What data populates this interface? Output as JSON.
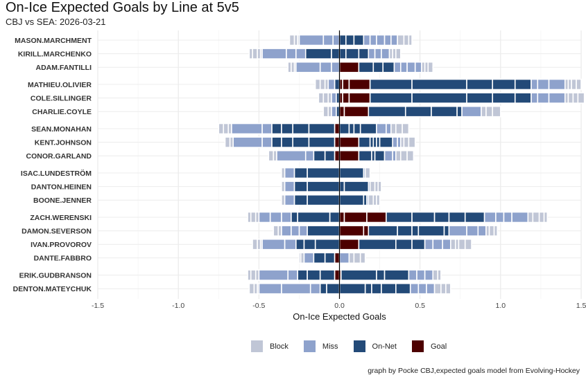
{
  "title": "On-Ice Expected Goals by Line at 5v5",
  "subtitle": "CBJ vs SEA: 2026-03-21",
  "caption": "graph by Pocke CBJ,expected goals model from Evolving-Hockey",
  "colors": {
    "Block": "#c0c6d6",
    "Miss": "#8ea2cc",
    "On-Net": "#234a78",
    "Goal": "#4d0000"
  },
  "chart_data": {
    "type": "bar",
    "orientation": "horizontal",
    "stacked": true,
    "diverging": true,
    "xlabel": "On-Ice Expected Goals",
    "xlim": [
      -1.5,
      1.5
    ],
    "xticks": [
      -1.5,
      -1.0,
      -0.5,
      0.0,
      0.5,
      1.0,
      1.5
    ],
    "xtick_labels": [
      "-1.5",
      "-1.0",
      "-0.5",
      "0.0",
      "0.5",
      "1.0",
      "1.5"
    ],
    "grid": true,
    "legend": {
      "position": "bottom",
      "entries": [
        "Block",
        "Miss",
        "On-Net",
        "Goal"
      ]
    },
    "groups": [
      [
        {
          "player": "MASON.MARCHMENT",
          "against": {
            "Block": [
              0.01,
              0.02,
              0.03
            ],
            "Miss": [
              0.04,
              0.06,
              0.15
            ],
            "On-Net": [],
            "Goal": []
          },
          "for": {
            "Block": [
              0.04,
              0.03,
              0.02
            ],
            "Miss": [
              0.04,
              0.04,
              0.05,
              0.04,
              0.04
            ],
            "On-Net": [
              0.04,
              0.05,
              0.06
            ],
            "Goal": []
          }
        },
        {
          "player": "KIRILL.MARCHENKO",
          "against": {
            "Block": [
              0.01,
              0.02,
              0.03,
              0.02
            ],
            "Miss": [
              0.06,
              0.06,
              0.15
            ],
            "On-Net": [
              0.05,
              0.16
            ],
            "Goal": []
          },
          "for": {
            "Block": [
              0.02,
              0.02,
              0.03
            ],
            "Miss": [
              0.04,
              0.04,
              0.05
            ],
            "On-Net": [
              0.04,
              0.08,
              0.06
            ],
            "Goal": []
          }
        },
        {
          "player": "ADAM.FANTILLI",
          "against": {
            "Block": [
              0.01,
              0.02,
              0.02
            ],
            "Miss": [
              0.05,
              0.07,
              0.15
            ],
            "On-Net": [],
            "Goal": []
          },
          "for": {
            "Block": [
              0.02,
              0.02,
              0.03
            ],
            "Miss": [
              0.04,
              0.04,
              0.05,
              0.04
            ],
            "On-Net": [
              0.09,
              0.06,
              0.07
            ],
            "Goal": [
              0.12
            ]
          }
        }
      ],
      [
        {
          "player": "MATHIEU.OLIVIER",
          "against": {
            "Block": [
              0.02,
              0.03,
              0.03
            ],
            "Miss": [
              0.04
            ],
            "On-Net": [
              0.03
            ],
            "Goal": []
          },
          "for": {
            "Block": [
              0.02,
              0.02,
              0.03,
              0.03
            ],
            "Miss": [
              0.04,
              0.07,
              0.1
            ],
            "On-Net": [
              0.26,
              0.34,
              0.16,
              0.14,
              0.1
            ],
            "Goal": [
              0.02,
              0.04,
              0.13
            ]
          }
        },
        {
          "player": "COLE.SILLINGER",
          "against": {
            "Block": [
              0.02,
              0.03,
              0.03
            ],
            "Miss": [
              0.03
            ],
            "On-Net": [
              0.02
            ],
            "Goal": []
          },
          "for": {
            "Block": [
              0.02,
              0.03,
              0.03,
              0.04
            ],
            "Miss": [
              0.04,
              0.07,
              0.1
            ],
            "On-Net": [
              0.26,
              0.34,
              0.16,
              0.14,
              0.1
            ],
            "Goal": [
              0.02,
              0.04,
              0.13
            ]
          }
        },
        {
          "player": "CHARLIE.COYLE",
          "against": {
            "Block": [
              0.02,
              0.03
            ],
            "Miss": [
              0.03
            ],
            "On-Net": [
              0.02
            ],
            "Goal": []
          },
          "for": {
            "Block": [
              0.03,
              0.04,
              0.05
            ],
            "Miss": [
              0.12
            ],
            "On-Net": [
              0.23,
              0.16,
              0.16,
              0.03
            ],
            "Goal": [
              0.03,
              0.15
            ]
          }
        }
      ],
      [
        {
          "player": "SEAN.MONAHAN",
          "against": {
            "Block": [
              0.02,
              0.03,
              0.03
            ],
            "Miss": [
              0.06,
              0.19
            ],
            "On-Net": [
              0.16,
              0.1,
              0.07,
              0.06
            ],
            "Goal": [
              0.03
            ]
          },
          "for": {
            "Block": [
              0.03,
              0.04,
              0.04
            ],
            "Miss": [
              0.06,
              0.03
            ],
            "On-Net": [
              0.06,
              0.03,
              0.04,
              0.1
            ],
            "Goal": []
          }
        },
        {
          "player": "KENT.JOHNSON",
          "against": {
            "Block": [
              0.02,
              0.03
            ],
            "Miss": [
              0.06,
              0.18
            ],
            "On-Net": [
              0.16,
              0.1,
              0.07,
              0.06
            ],
            "Goal": [
              0.03
            ]
          },
          "for": {
            "Block": [
              0.02,
              0.03,
              0.04
            ],
            "Miss": [
              0.03,
              0.02
            ],
            "On-Net": [
              0.07,
              0.02,
              0.02,
              0.02,
              0.08
            ],
            "Goal": [
              0.12
            ]
          }
        },
        {
          "player": "CONOR.GARLAND",
          "against": {
            "Block": [
              0.02,
              0.03
            ],
            "Miss": [
              0.05,
              0.18
            ],
            "On-Net": [
              0.06,
              0.07
            ],
            "Goal": [
              0.03
            ]
          },
          "for": {
            "Block": [
              0.03,
              0.04,
              0.04
            ],
            "Miss": [
              0.05,
              0.02
            ],
            "On-Net": [
              0.08,
              0.02,
              0.06
            ],
            "Goal": [
              0.12
            ]
          }
        }
      ],
      [
        {
          "player": "ISAC.LUNDESTRÖM",
          "against": {
            "Block": [
              0.02
            ],
            "Miss": [
              0.06
            ],
            "On-Net": [
              0.2,
              0.08
            ],
            "Goal": []
          },
          "for": {
            "Block": [
              0.03
            ],
            "Miss": [
              0.01
            ],
            "On-Net": [
              0.15
            ],
            "Goal": []
          }
        },
        {
          "player": "DANTON.HEINEN",
          "against": {
            "Block": [
              0.02
            ],
            "Miss": [
              0.06
            ],
            "On-Net": [
              0.2,
              0.08
            ],
            "Goal": []
          },
          "for": {
            "Block": [
              0.03,
              0.02,
              0.02
            ],
            "Miss": [
              0.01
            ],
            "On-Net": [
              0.03,
              0.15
            ],
            "Goal": []
          }
        },
        {
          "player": "BOONE.JENNER",
          "against": {
            "Block": [
              0.02
            ],
            "Miss": [
              0.06
            ],
            "On-Net": [
              0.2,
              0.08
            ],
            "Goal": []
          },
          "for": {
            "Block": [
              0.03,
              0.02,
              0.02
            ],
            "Miss": [
              0.01
            ],
            "On-Net": [
              0.15,
              0.02
            ],
            "Goal": []
          }
        }
      ],
      [
        {
          "player": "ZACH.WERENSKI",
          "against": {
            "Block": [
              0.02,
              0.03,
              0.02
            ],
            "Miss": [
              0.06,
              0.07,
              0.07
            ],
            "On-Net": [
              0.06,
              0.2,
              0.04
            ],
            "Goal": []
          },
          "for": {
            "Block": [
              0.03,
              0.04,
              0.03,
              0.02
            ],
            "Miss": [
              0.07,
              0.05,
              0.05,
              0.1
            ],
            "On-Net": [
              0.16,
              0.14,
              0.09,
              0.1,
              0.12
            ],
            "Goal": [
              0.03,
              0.14,
              0.12
            ]
          }
        },
        {
          "player": "DAMON.SEVERSON",
          "against": {
            "Block": [
              0.02,
              0.03
            ],
            "Miss": [
              0.05,
              0.05,
              0.06
            ],
            "On-Net": [
              0.2
            ],
            "Goal": []
          },
          "for": {
            "Block": [
              0.02,
              0.03,
              0.02
            ],
            "Miss": [
              0.11,
              0.07,
              0.05
            ],
            "On-Net": [
              0.18,
              0.09,
              0.04,
              0.16,
              0.03
            ],
            "Goal": [
              0.15,
              0.03
            ]
          }
        },
        {
          "player": "IVAN.PROVOROV",
          "against": {
            "Block": [
              0.01,
              0.02,
              0.03
            ],
            "Miss": [
              0.07,
              0.14
            ],
            "On-Net": [
              0.15,
              0.07,
              0.05
            ],
            "Goal": []
          },
          "for": {
            "Block": [
              0.03,
              0.02,
              0.04,
              0.04
            ],
            "Miss": [
              0.05,
              0.06,
              0.05
            ],
            "On-Net": [
              0.23,
              0.1,
              0.08
            ],
            "Goal": [
              0.12
            ]
          }
        },
        {
          "player": "DANTE.FABBRO",
          "against": {
            "Block": [
              0.02,
              0.01
            ],
            "Miss": [
              0.06
            ],
            "On-Net": [
              0.06,
              0.07
            ],
            "Goal": [
              0.03
            ]
          },
          "for": {
            "Block": [
              0.03,
              0.04,
              0.03
            ],
            "Miss": [
              0.06
            ],
            "On-Net": [],
            "Goal": []
          }
        }
      ],
      [
        {
          "player": "ERIK.GUDBRANSON",
          "against": {
            "Block": [
              0.02,
              0.03,
              0.02
            ],
            "Miss": [
              0.06,
              0.18
            ],
            "On-Net": [
              0.09,
              0.08,
              0.06
            ],
            "Goal": [
              0.03
            ]
          },
          "for": {
            "Block": [
              0.03,
              0.02
            ],
            "Miss": [
              0.05,
              0.05,
              0.05
            ],
            "On-Net": [
              0.22,
              0.05,
              0.15
            ],
            "Goal": [
              0.01
            ]
          }
        },
        {
          "player": "DENTON.MATEYCHUK",
          "against": {
            "Block": [
              0.01,
              0.02,
              0.03
            ],
            "Miss": [
              0.06,
              0.18,
              0.14
            ],
            "On-Net": [
              0.08,
              0.04
            ],
            "Goal": []
          },
          "for": {
            "Block": [
              0.04,
              0.03,
              0.03
            ],
            "Miss": [
              0.05,
              0.05,
              0.05
            ],
            "On-Net": [
              0.16,
              0.04,
              0.06,
              0.09,
              0.09
            ],
            "Goal": []
          }
        }
      ]
    ]
  }
}
